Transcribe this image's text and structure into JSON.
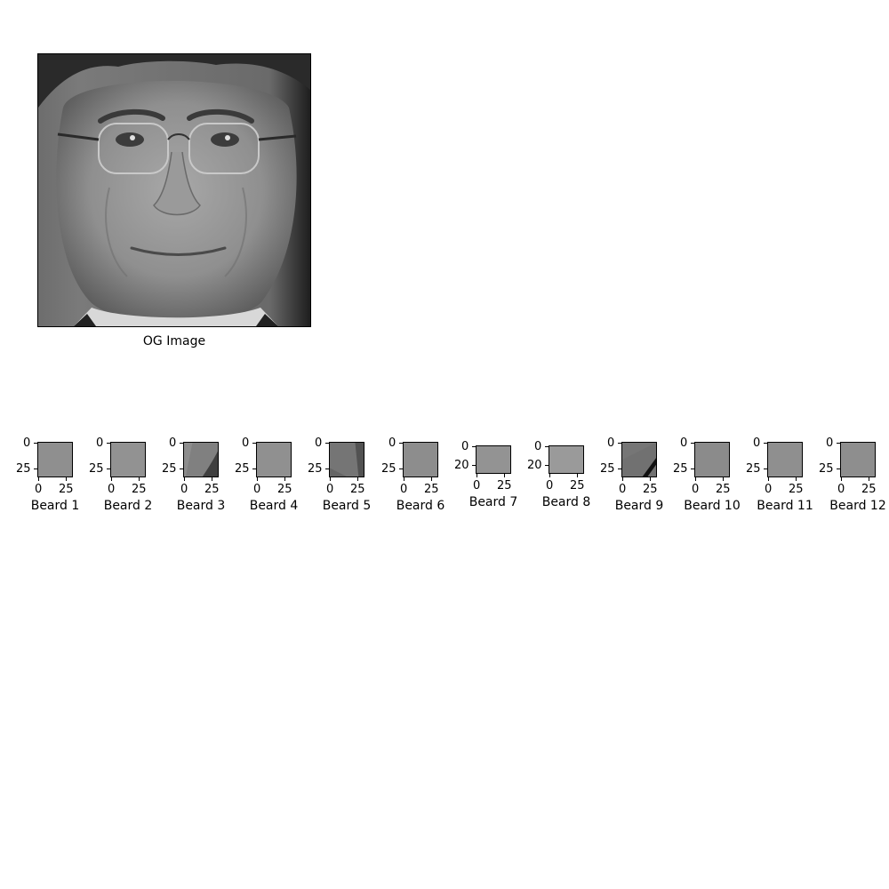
{
  "og_image": {
    "label": "OG Image"
  },
  "patches": [
    {
      "label": "Beard 1",
      "y_ticks": [
        "0",
        "25"
      ],
      "x_ticks": [
        "0",
        "25"
      ],
      "tone": "#8a8a8a",
      "variant": "flat"
    },
    {
      "label": "Beard 2",
      "y_ticks": [
        "0",
        "25"
      ],
      "x_ticks": [
        "0",
        "25"
      ],
      "tone": "#8d8d8d",
      "variant": "flat"
    },
    {
      "label": "Beard 3",
      "y_ticks": [
        "0",
        "25"
      ],
      "x_ticks": [
        "0",
        "25"
      ],
      "tone": "#7a7a7a",
      "variant": "edge"
    },
    {
      "label": "Beard 4",
      "y_ticks": [
        "0",
        "25"
      ],
      "x_ticks": [
        "0",
        "25"
      ],
      "tone": "#8b8b8b",
      "variant": "flat"
    },
    {
      "label": "Beard 5",
      "y_ticks": [
        "0",
        "25"
      ],
      "x_ticks": [
        "0",
        "25"
      ],
      "tone": "#6e6e6e",
      "variant": "dark"
    },
    {
      "label": "Beard 6",
      "y_ticks": [
        "0",
        "25"
      ],
      "x_ticks": [
        "0",
        "25"
      ],
      "tone": "#878787",
      "variant": "flat"
    },
    {
      "label": "Beard 7",
      "y_ticks": [
        "0",
        "20"
      ],
      "x_ticks": [
        "0",
        "25"
      ],
      "tone": "#8e8e8e",
      "variant": "flat"
    },
    {
      "label": "Beard 8",
      "y_ticks": [
        "0",
        "20"
      ],
      "x_ticks": [
        "0",
        "25"
      ],
      "tone": "#959595",
      "variant": "flat"
    },
    {
      "label": "Beard 9",
      "y_ticks": [
        "0",
        "25"
      ],
      "x_ticks": [
        "0",
        "25"
      ],
      "tone": "#6a6a6a",
      "variant": "diag"
    },
    {
      "label": "Beard 10",
      "y_ticks": [
        "0",
        "25"
      ],
      "x_ticks": [
        "0",
        "25"
      ],
      "tone": "#858585",
      "variant": "flat"
    },
    {
      "label": "Beard 11",
      "y_ticks": [
        "0",
        "25"
      ],
      "x_ticks": [
        "0",
        "25"
      ],
      "tone": "#8a8a8a",
      "variant": "flat"
    },
    {
      "label": "Beard 12",
      "y_ticks": [
        "0",
        "25"
      ],
      "x_ticks": [
        "0",
        "25"
      ],
      "tone": "#888888",
      "variant": "flat"
    }
  ]
}
